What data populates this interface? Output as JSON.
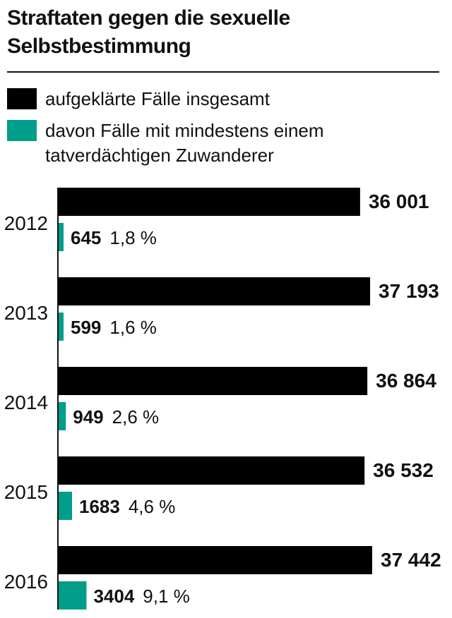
{
  "chart_data": {
    "type": "bar",
    "orientation": "horizontal",
    "title": "Straftaten gegen die sexuelle Selbstbestimmung",
    "legend": [
      {
        "name": "aufgeklärte Fälle insgesamt",
        "color": "#000000"
      },
      {
        "name": "davon Fälle mit mindestens einem tatverdächtigen Zuwanderer",
        "color": "#009e8a"
      }
    ],
    "categories": [
      "2012",
      "2013",
      "2014",
      "2015",
      "2016"
    ],
    "series": [
      {
        "name": "aufgeklärte Fälle insgesamt",
        "color": "#000000",
        "values": [
          36001,
          37193,
          36864,
          36532,
          37442
        ],
        "labels": [
          "36 001",
          "37 193",
          "36 864",
          "36 532",
          "37 442"
        ]
      },
      {
        "name": "davon Fälle mit mindestens einem tatverdächtigen Zuwanderer",
        "color": "#009e8a",
        "values": [
          645,
          599,
          949,
          1683,
          3404
        ],
        "labels": [
          "645",
          "599",
          "949",
          "1683",
          "3404"
        ],
        "percent_labels": [
          "1,8 %",
          "1,6 %",
          "2,6 %",
          "4,6 %",
          "9,1 %"
        ]
      }
    ],
    "xlim": [
      0,
      37442
    ]
  }
}
